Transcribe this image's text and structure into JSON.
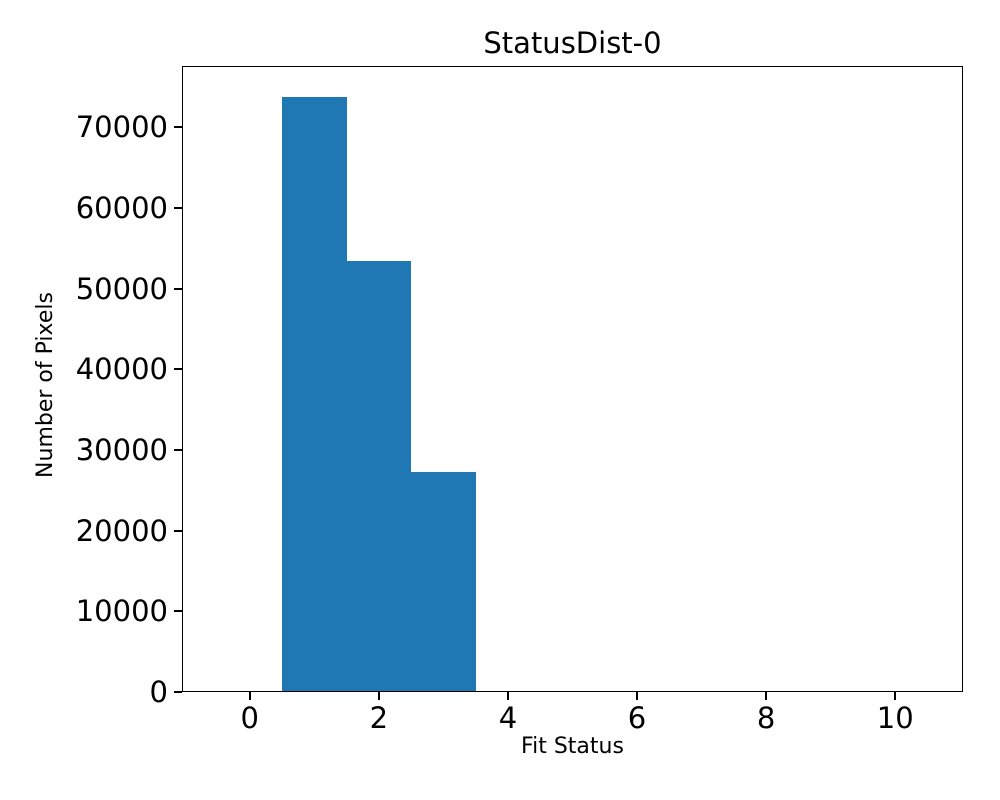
{
  "chart_data": {
    "type": "histogram",
    "title": "StatusDist-0",
    "xlabel": "Fit Status",
    "ylabel": "Number of Pixels",
    "bin_centers": [
      0,
      1,
      2,
      3,
      4,
      5,
      6,
      7,
      8,
      9,
      10
    ],
    "bin_width": 1,
    "counts": [
      0,
      73700,
      53400,
      27300,
      0,
      0,
      0,
      0,
      0,
      0,
      0
    ],
    "x_ticks": [
      0,
      2,
      4,
      6,
      8,
      10
    ],
    "y_ticks": [
      0,
      10000,
      20000,
      30000,
      40000,
      50000,
      60000,
      70000
    ],
    "xlim": [
      -1.05,
      11.05
    ],
    "ylim": [
      0,
      77600
    ],
    "grid": false,
    "legend": null,
    "bar_color": "#1f77b4",
    "axis_color": "#000000",
    "background_color": "#ffffff"
  }
}
